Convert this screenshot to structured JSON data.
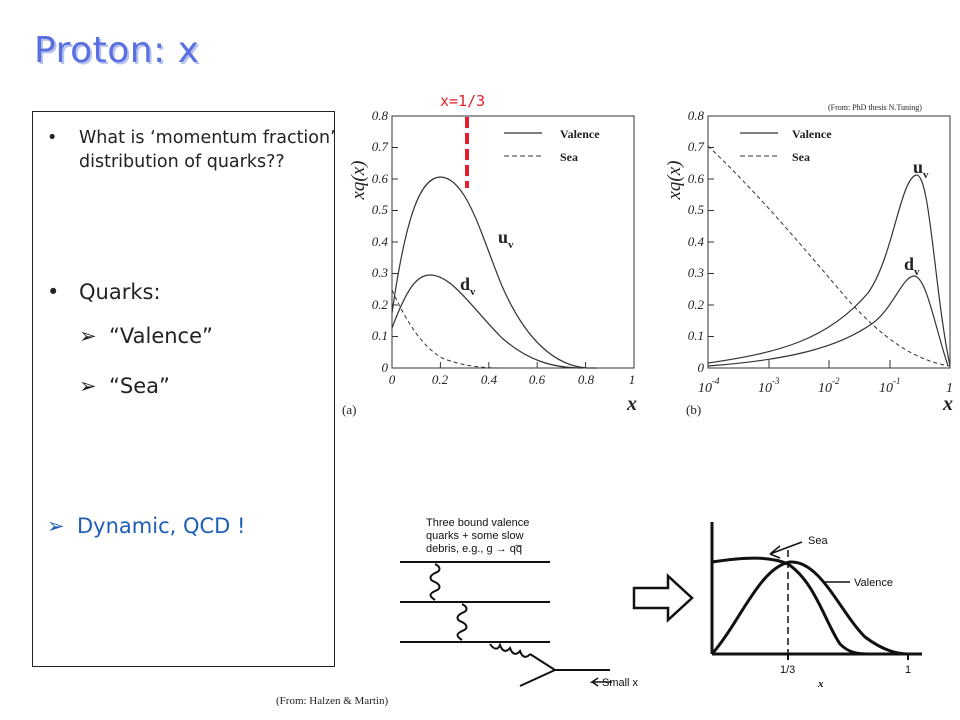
{
  "slide": {
    "title": "Proton: x",
    "credit_top": "(From: PhD thesis N.Tuning)",
    "credit_bottom": "(From: Halzen & Martin)",
    "marker_label": "x=1/3"
  },
  "bullets": {
    "q1": "What is ‘momentum fraction’ distribution of quarks??",
    "quarks": "Quarks:",
    "valence": "“Valence”",
    "sea": "“Sea”",
    "dynamic": "Dynamic, QCD !"
  },
  "colors": {
    "title": "#5a6fe0",
    "highlight": "#1f5fb8",
    "marker": "#e2202d"
  },
  "plot_a": {
    "ylabel": "xq(x)",
    "xlabel": "x",
    "panel": "(a)",
    "legend_valence": "Valence",
    "legend_sea": "Sea",
    "label_u": "u",
    "label_u_sub": "v",
    "label_d": "d",
    "label_d_sub": "v",
    "xticks": [
      "0",
      "0.2",
      "0.4",
      "0.6",
      "0.8",
      "1"
    ],
    "yticks": [
      "0",
      "0.1",
      "0.2",
      "0.3",
      "0.4",
      "0.5",
      "0.6",
      "0.7",
      "0.8"
    ]
  },
  "plot_b": {
    "ylabel": "xq(x)",
    "xlabel": "x",
    "panel": "(b)",
    "legend_valence": "Valence",
    "legend_sea": "Sea",
    "label_u": "u",
    "label_u_sub": "v",
    "label_d": "d",
    "label_d_sub": "v",
    "xtick_base": "10",
    "xtick_exps": [
      "-4",
      "-3",
      "-2",
      "-1"
    ],
    "xtick_one": "1",
    "yticks": [
      "0",
      "0.1",
      "0.2",
      "0.3",
      "0.4",
      "0.5",
      "0.6",
      "0.7",
      "0.8"
    ]
  },
  "diagram": {
    "line1": "Three bound valence",
    "line2": "quarks + some slow",
    "line3": "debris, e.g., g → qq̅",
    "small_x": "Small x"
  },
  "sketch": {
    "sea_label": "Sea",
    "valence_label": "Valence",
    "tick_third": "1/3",
    "tick_one": "1",
    "xlabel": "x"
  }
}
